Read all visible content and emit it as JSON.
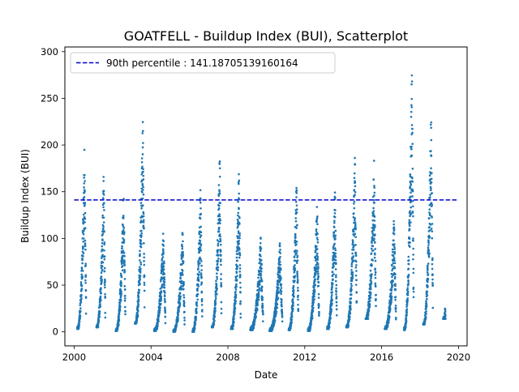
{
  "chart_data": {
    "type": "scatter",
    "title": "GOATFELL - Buildup Index (BUI), Scatterplot",
    "xlabel": "Date",
    "ylabel": "Buildup Index (BUI)",
    "xlim": [
      "1999-07-09",
      "2020-06-12"
    ],
    "ylim": [
      -15,
      305
    ],
    "x_ticks": [
      "2000",
      "2004",
      "2008",
      "2012",
      "2016",
      "2020"
    ],
    "y_ticks": [
      "0",
      "50",
      "100",
      "150",
      "200",
      "250",
      "300"
    ],
    "legend_position": "upper-left",
    "grid": false,
    "point_color": "#1f77b4",
    "line_color": "#0000cc",
    "threshold": {
      "label": "90th percentile : 141.18705139160164",
      "value": 141.18705139160164,
      "x_start": "2000-01-01",
      "x_end": "2019-12-31"
    },
    "seasons": [
      {
        "start": "2000-03-01",
        "end": "2000-08-15",
        "min": 3,
        "max": 201
      },
      {
        "start": "2001-03-01",
        "end": "2001-08-15",
        "min": 5,
        "max": 171
      },
      {
        "start": "2002-03-01",
        "end": "2002-08-31",
        "min": 1,
        "max": 154
      },
      {
        "start": "2003-03-01",
        "end": "2003-08-31",
        "min": 9,
        "max": 232
      },
      {
        "start": "2004-03-01",
        "end": "2004-09-30",
        "min": 1,
        "max": 110
      },
      {
        "start": "2005-03-01",
        "end": "2005-09-30",
        "min": 0,
        "max": 110
      },
      {
        "start": "2006-03-01",
        "end": "2006-08-31",
        "min": 0,
        "max": 154
      },
      {
        "start": "2007-03-01",
        "end": "2007-08-31",
        "min": 5,
        "max": 197
      },
      {
        "start": "2008-03-01",
        "end": "2008-08-31",
        "min": 3,
        "max": 175
      },
      {
        "start": "2009-03-01",
        "end": "2009-10-31",
        "min": 2,
        "max": 103
      },
      {
        "start": "2010-03-01",
        "end": "2010-10-31",
        "min": 1,
        "max": 97
      },
      {
        "start": "2011-03-01",
        "end": "2011-08-31",
        "min": 2,
        "max": 164
      },
      {
        "start": "2012-03-01",
        "end": "2012-09-30",
        "min": 1,
        "max": 140
      },
      {
        "start": "2013-03-01",
        "end": "2013-08-31",
        "min": 3,
        "max": 155
      },
      {
        "start": "2014-03-01",
        "end": "2014-09-15",
        "min": 5,
        "max": 187
      },
      {
        "start": "2015-03-01",
        "end": "2015-09-15",
        "min": 14,
        "max": 184
      },
      {
        "start": "2016-03-01",
        "end": "2016-09-30",
        "min": 3,
        "max": 124
      },
      {
        "start": "2017-03-01",
        "end": "2017-08-31",
        "min": 2,
        "max": 290
      },
      {
        "start": "2018-03-01",
        "end": "2018-08-31",
        "min": 8,
        "max": 242
      },
      {
        "start": "2019-03-15",
        "end": "2019-04-30",
        "min": 14,
        "max": 26
      }
    ]
  }
}
